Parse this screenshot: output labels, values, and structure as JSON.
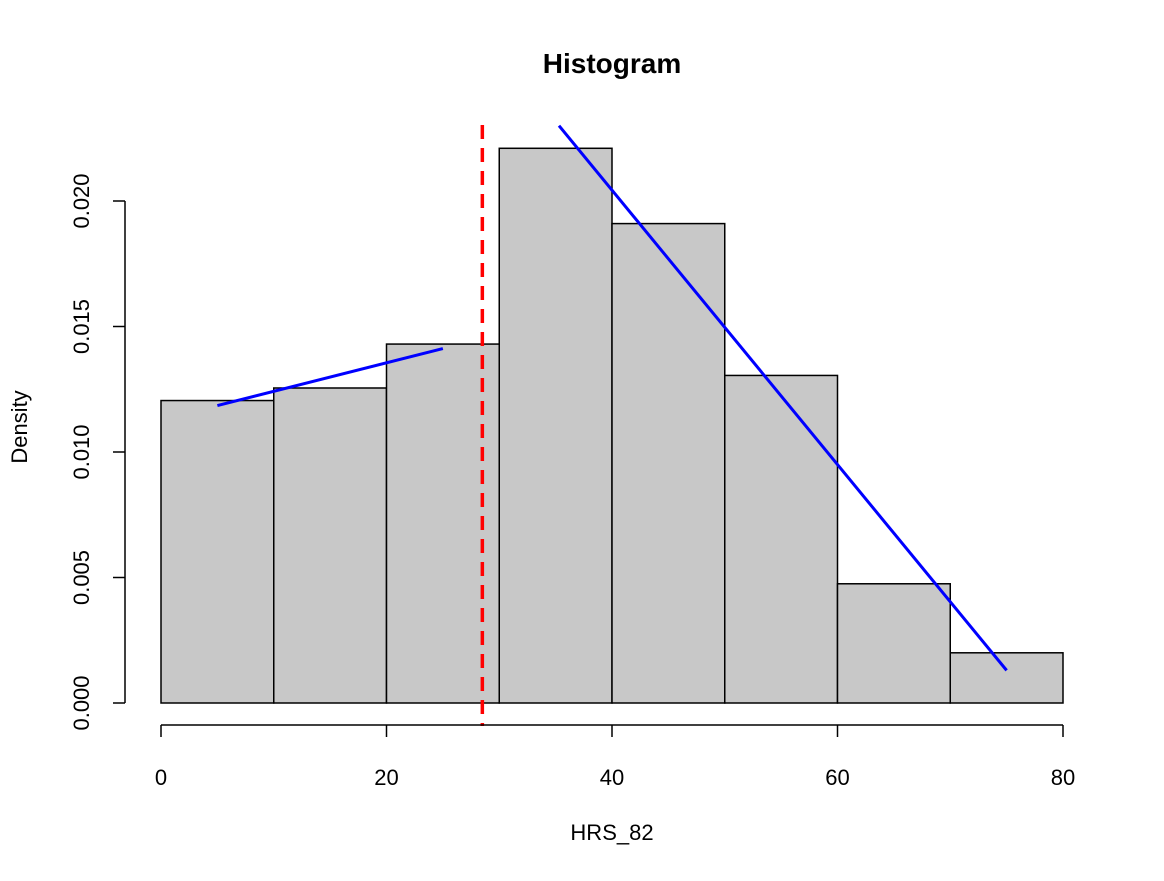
{
  "chart_data": {
    "type": "bar",
    "title": "Histogram",
    "xlabel": "HRS_82",
    "ylabel": "Density",
    "bins": [
      {
        "x0": 0,
        "x1": 10,
        "density": 0.01205
      },
      {
        "x0": 10,
        "x1": 20,
        "density": 0.01255
      },
      {
        "x0": 20,
        "x1": 30,
        "density": 0.0143
      },
      {
        "x0": 30,
        "x1": 40,
        "density": 0.0221
      },
      {
        "x0": 40,
        "x1": 50,
        "density": 0.0191
      },
      {
        "x0": 50,
        "x1": 60,
        "density": 0.01305
      },
      {
        "x0": 60,
        "x1": 70,
        "density": 0.00475
      },
      {
        "x0": 70,
        "x1": 80,
        "density": 0.002
      }
    ],
    "xlim": [
      0,
      80
    ],
    "ylim": [
      0,
      0.022
    ],
    "xticks": [
      {
        "value": 0,
        "label": "0"
      },
      {
        "value": 20,
        "label": "20"
      },
      {
        "value": 40,
        "label": "40"
      },
      {
        "value": 60,
        "label": "60"
      },
      {
        "value": 80,
        "label": "80"
      }
    ],
    "yticks": [
      {
        "value": 0,
        "label": "0.000"
      },
      {
        "value": 0.005,
        "label": "0.005"
      },
      {
        "value": 0.01,
        "label": "0.010"
      },
      {
        "value": 0.015,
        "label": "0.015"
      },
      {
        "value": 0.02,
        "label": "0.020"
      }
    ],
    "vline": {
      "x": 28.5,
      "color": "#ff0000",
      "style": "dashed"
    },
    "fit_lines": [
      {
        "x": [
          5,
          25
        ],
        "y": [
          0.01185,
          0.01412
        ],
        "color": "#0000ff"
      },
      {
        "x": [
          35.3,
          75
        ],
        "y": [
          0.023,
          0.0013
        ],
        "color": "#0000ff"
      }
    ],
    "bar_fill": "#c8c8c8",
    "bar_stroke": "#000000",
    "grid": false,
    "legend": "none"
  }
}
